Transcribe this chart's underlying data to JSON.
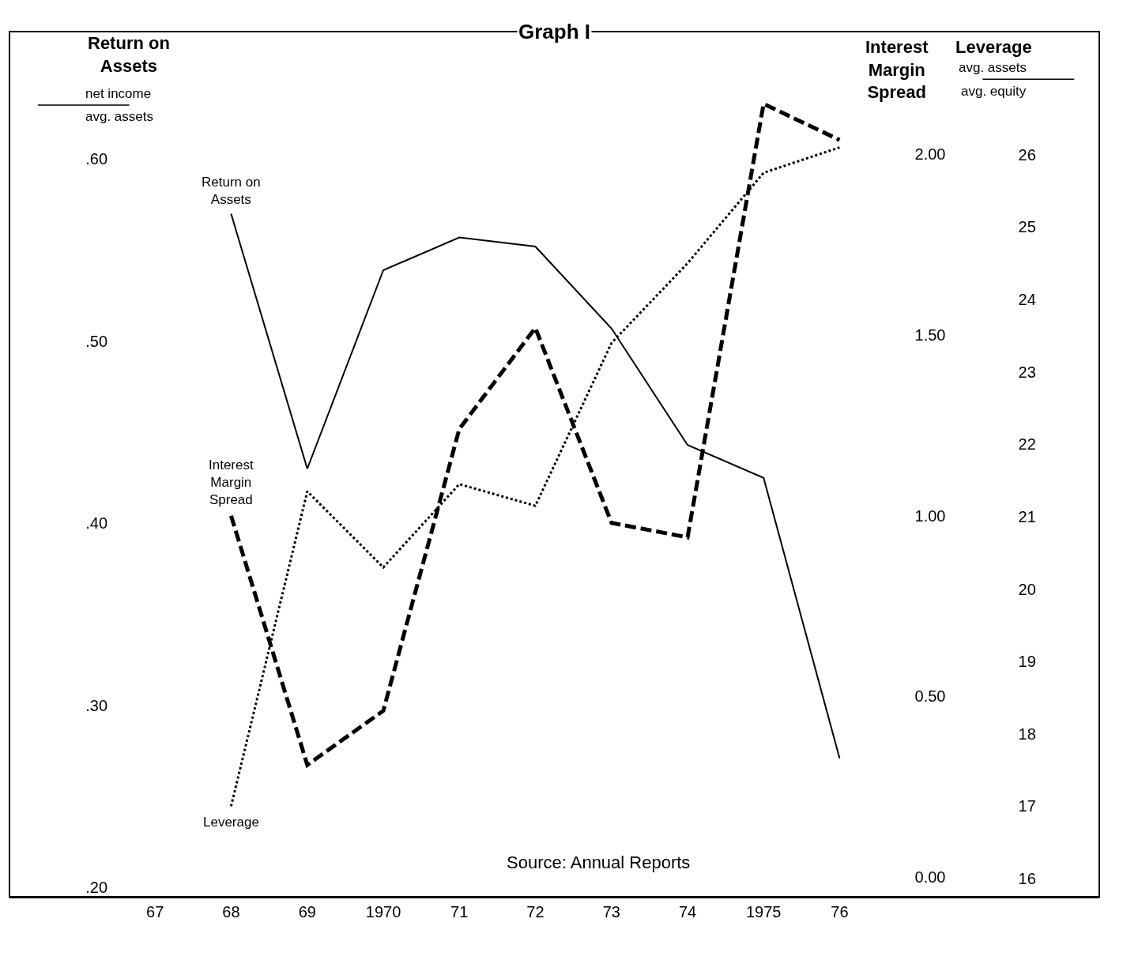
{
  "chart_data": {
    "type": "line",
    "title": "Graph I",
    "ylabel": "Return on Assets",
    "y2label": "Interest Margin Spread",
    "y3label": "Leverage",
    "x": [
      "1968",
      "1969",
      "1970",
      "1971",
      "1972",
      "1973",
      "1974",
      "1975",
      "1976"
    ],
    "xlim": [
      "1965-02",
      "1979-06"
    ],
    "xticks": [
      {
        "value": "1967",
        "label": "67"
      },
      {
        "value": "1968",
        "label": "68"
      },
      {
        "value": "1969",
        "label": "69"
      },
      {
        "value": "1970",
        "label": "1970"
      },
      {
        "value": "1971",
        "label": "71"
      },
      {
        "value": "1972",
        "label": "72"
      },
      {
        "value": "1973",
        "label": "73"
      },
      {
        "value": "1974",
        "label": "74"
      },
      {
        "value": "1975",
        "label": "1975"
      },
      {
        "value": "1976",
        "label": "76"
      }
    ],
    "ylim": [
      0.195,
      0.67
    ],
    "yticks": [
      {
        "value": 0.2,
        "label": ".20"
      },
      {
        "value": 0.3,
        "label": ".30"
      },
      {
        "value": 0.4,
        "label": ".40"
      },
      {
        "value": 0.5,
        "label": ".50"
      },
      {
        "value": 0.6,
        "label": ".60"
      }
    ],
    "y2lim": [
      -0.055,
      2.34
    ],
    "y2ticks": [
      {
        "value": 0,
        "label": "0.00"
      },
      {
        "value": 0.5,
        "label": "0.50"
      },
      {
        "value": 1,
        "label": "1.00"
      },
      {
        "value": 1.5,
        "label": "1.50"
      },
      {
        "value": 2,
        "label": "2.00"
      }
    ],
    "y3lim": [
      15.75,
      27.7
    ],
    "y3ticks": [
      16,
      17,
      18,
      19,
      20,
      21,
      22,
      23,
      24,
      25,
      26
    ],
    "series": [
      {
        "name": "Return on Assets",
        "color": "#000000",
        "line_style": "solid",
        "values": [
          0.57,
          0.43,
          0.539,
          0.557,
          0.552,
          0.507,
          0.443,
          0.425,
          0.271
        ]
      },
      {
        "name": "Interest Margin Spread",
        "color": "#000000",
        "line_style": "dashed",
        "axis": "y2",
        "values": [
          1.0,
          0.31,
          0.46,
          1.24,
          1.52,
          0.98,
          0.94,
          2.14,
          2.04
        ]
      },
      {
        "name": "Leverage",
        "color": "#000000",
        "line_style": "dotted",
        "axis": "y3",
        "values": [
          17.0,
          21.35,
          20.3,
          21.45,
          21.15,
          23.4,
          24.5,
          25.75,
          26.1
        ]
      }
    ],
    "annotations": [
      "net income",
      "avg. assets",
      "avg. assets",
      "avg. equity",
      "Source: Annual Reports"
    ],
    "grid": false,
    "legend": false
  }
}
